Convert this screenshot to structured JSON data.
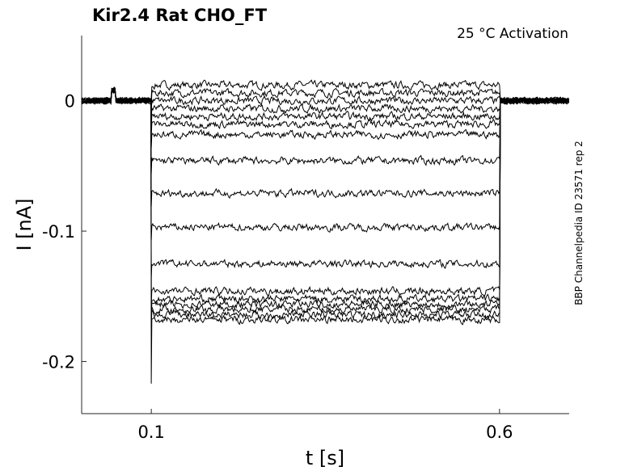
{
  "chart_data": {
    "type": "line",
    "title": "Kir2.4  Rat  CHO_FT",
    "annotation": "25 °C  Activation",
    "side_label": "BBP Channelpedia ID 23571 rep 2",
    "xlabel": "t [s]",
    "ylabel": "I [nA]",
    "xlim": [
      0.0,
      0.7
    ],
    "ylim": [
      -0.24,
      0.05
    ],
    "xticks": [
      0.1,
      0.6
    ],
    "xtick_labels": [
      "0.1",
      "0.6"
    ],
    "yticks": [
      0,
      -0.1,
      -0.2
    ],
    "ytick_labels": [
      "0",
      "-0.1",
      "-0.2"
    ],
    "grid": false,
    "legend": "none",
    "line_color": "#000000",
    "stimulus_window": [
      0.1,
      0.6
    ],
    "sweep_levels_nA": [
      0.012,
      0.006,
      0.0,
      -0.006,
      -0.012,
      -0.018,
      -0.026,
      -0.046,
      -0.071,
      -0.097,
      -0.125,
      -0.146,
      -0.152,
      -0.156,
      -0.16,
      -0.164,
      -0.168
    ],
    "noise_amplitude_nA": 0.008,
    "onset_transient_min_nA": -0.217,
    "baseline_artifact_t_s": [
      0.042,
      0.048
    ]
  }
}
